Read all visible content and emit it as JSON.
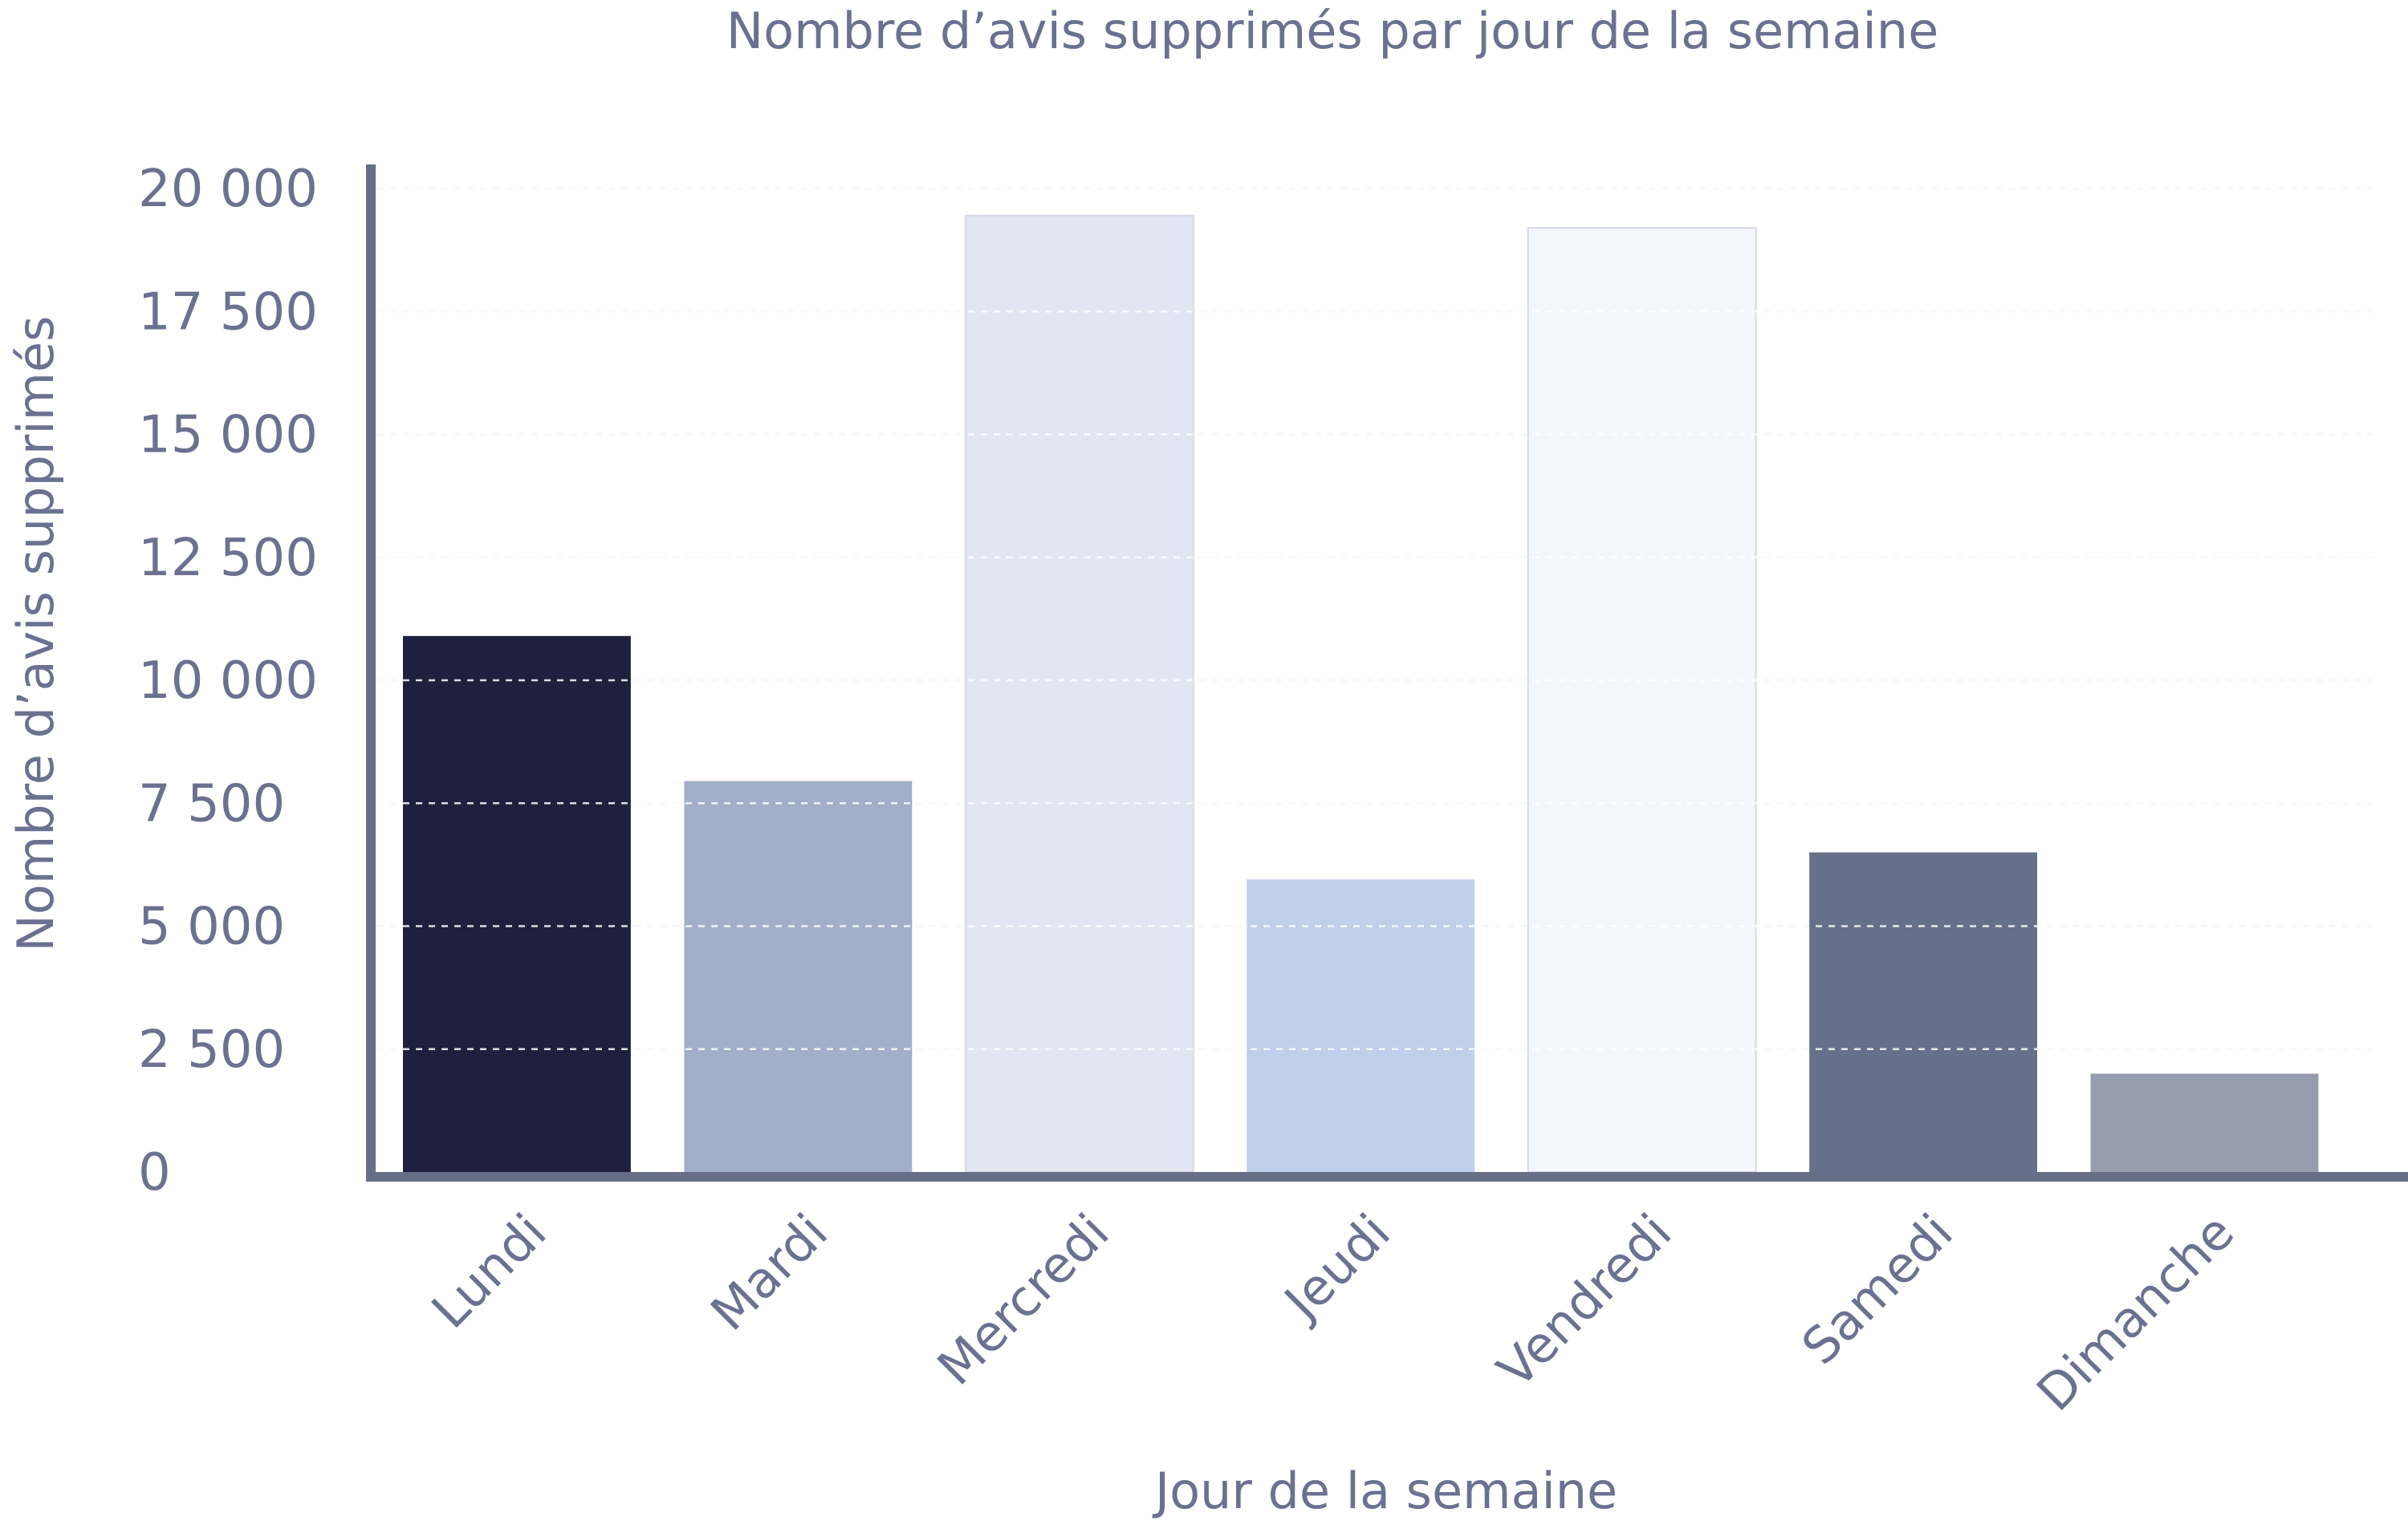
{
  "chart_data": {
    "type": "bar",
    "title": "Nombre d’avis supprimés par jour de la semaine",
    "xlabel": "Jour de la semaine",
    "ylabel": "Nombre d’avis supprimés",
    "categories": [
      "Lundi",
      "Mardi",
      "Mercredi",
      "Jeudi",
      "Vendredi",
      "Samedi",
      "Dimanche"
    ],
    "values": [
      10900,
      7950,
      19450,
      5950,
      19200,
      6500,
      2000
    ],
    "colors": [
      "#1e213d",
      "#a3afc8",
      "#e2e6f2",
      "#c2cfea",
      "#f3f6fd",
      "#667088",
      "#959cae"
    ],
    "ylim": [
      0,
      20000
    ],
    "yticks": [
      0,
      2500,
      5000,
      7500,
      10000,
      12500,
      15000,
      17500,
      20000
    ],
    "ytick_labels": [
      "0",
      "2 500",
      "5 000",
      "7 500",
      "10 000",
      "12 500",
      "15 000",
      "17 500",
      "20 000"
    ],
    "grid": true,
    "legend": "none"
  }
}
